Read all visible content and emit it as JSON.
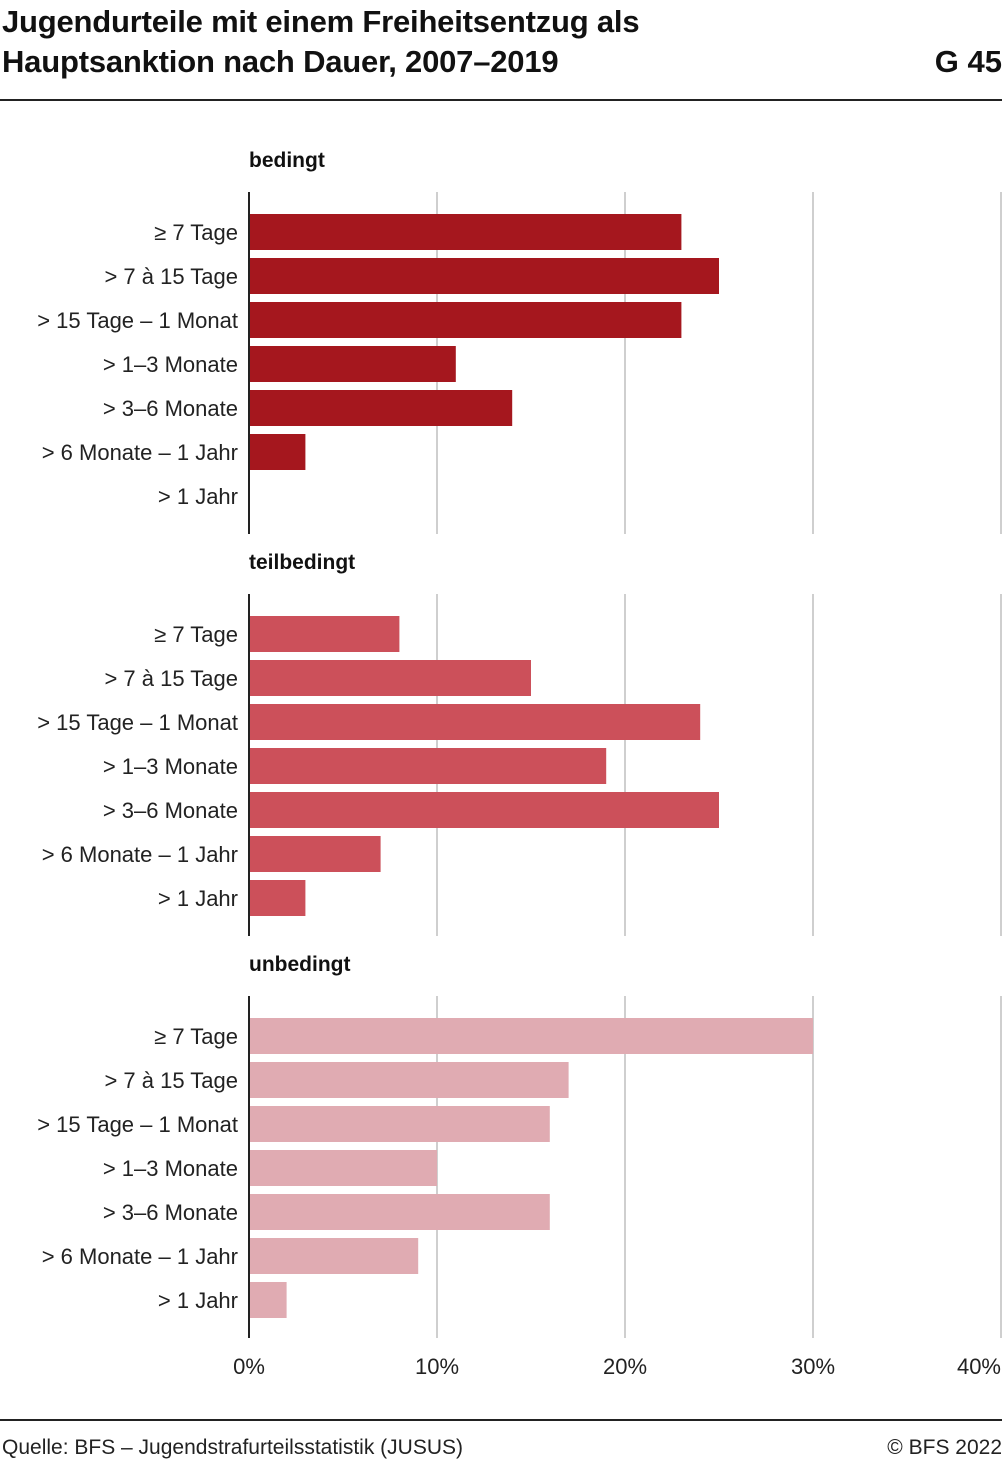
{
  "header": {
    "title_line1": "Jugendurteile mit einem Freiheitsentzug als",
    "title_line2": "Hauptsanktion nach Dauer, 2007–2019",
    "figure_number": "G 45"
  },
  "footer": {
    "source": "Quelle: BFS – Jugendstrafurteilsstatistik (JUSUS)",
    "copyright": "© BFS 2022"
  },
  "chart_data": {
    "type": "bar",
    "orientation": "horizontal",
    "categories": [
      "≥ 7 Tage",
      "> 7 à 15 Tage",
      "> 15 Tage – 1 Monat",
      "> 1–3 Monate",
      "> 3–6 Monate",
      "> 6 Monate – 1 Jahr",
      "> 1 Jahr"
    ],
    "x_ticks": [
      "0%",
      "10%",
      "20%",
      "30%",
      "40%"
    ],
    "xlim": [
      0,
      40
    ],
    "grid": true,
    "panels": [
      {
        "title": "bedingt",
        "color": "#a5171e",
        "values": [
          23,
          25,
          23,
          11,
          14,
          3,
          0
        ]
      },
      {
        "title": "teilbedingt",
        "color": "#cc505a",
        "values": [
          8,
          15,
          24,
          19,
          25,
          7,
          3
        ]
      },
      {
        "title": "unbedingt",
        "color": "#e0abb2",
        "values": [
          30,
          17,
          16,
          10,
          16,
          9,
          2
        ]
      }
    ]
  }
}
